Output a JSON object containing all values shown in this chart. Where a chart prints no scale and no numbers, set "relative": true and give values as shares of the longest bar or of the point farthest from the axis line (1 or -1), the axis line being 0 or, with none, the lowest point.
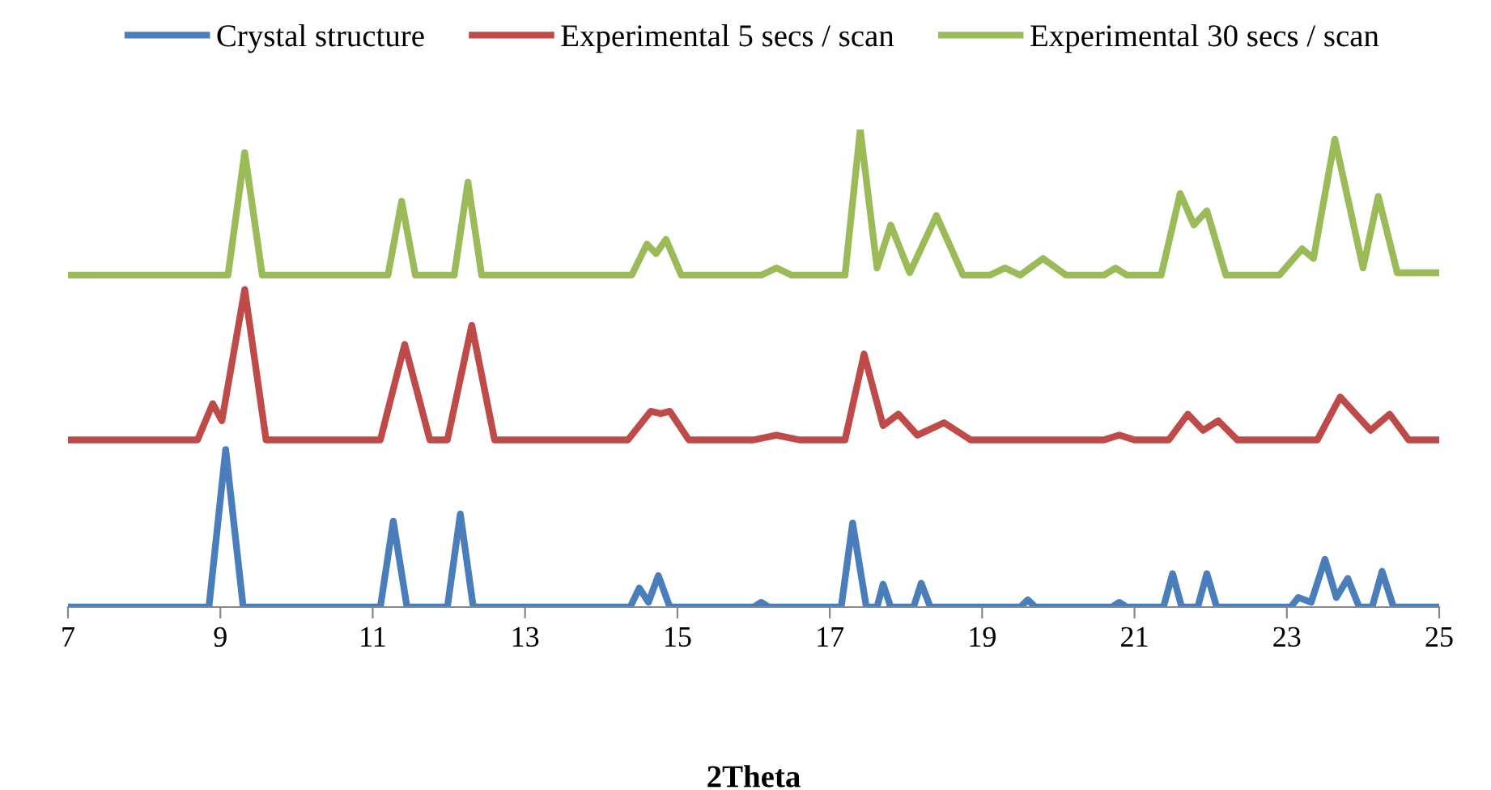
{
  "chart_data": {
    "type": "line",
    "relative": true,
    "xlabel": "2Theta",
    "xlim": [
      7,
      25
    ],
    "xticks": [
      7,
      9,
      11,
      13,
      15,
      17,
      19,
      21,
      23,
      25
    ],
    "legend": "top",
    "grid": false,
    "marker": "none",
    "line_style": "solid",
    "series": [
      {
        "name": "Crystal structure",
        "color": "#4a7ebb",
        "x": [
          7,
          8.85,
          9.07,
          9.3,
          11.1,
          11.27,
          11.45,
          11.98,
          12.15,
          12.32,
          14.38,
          14.5,
          14.62,
          14.75,
          14.9,
          16.0,
          16.1,
          16.2,
          17.15,
          17.3,
          17.48,
          17.62,
          17.7,
          17.8,
          18.1,
          18.2,
          18.32,
          19.5,
          19.6,
          19.7,
          20.7,
          20.8,
          20.9,
          21.38,
          21.5,
          21.62,
          21.83,
          21.95,
          22.08,
          23.05,
          23.15,
          23.32,
          23.5,
          23.65,
          23.8,
          23.95,
          24.12,
          24.25,
          24.4,
          25
        ],
        "values": [
          0,
          0,
          0.33,
          0,
          0,
          0.18,
          0,
          0,
          0.195,
          0,
          0,
          0.04,
          0.01,
          0.066,
          0,
          0,
          0.01,
          0,
          0,
          0.176,
          0,
          0,
          0.048,
          0,
          0,
          0.05,
          0,
          0,
          0.015,
          0,
          0,
          0.01,
          0,
          0,
          0.07,
          0,
          0,
          0.07,
          0,
          0,
          0.02,
          0.01,
          0.1,
          0.02,
          0.06,
          0,
          0,
          0.075,
          0,
          0
        ]
      },
      {
        "name": "Experimental 5 secs / scan",
        "color": "#be4b48",
        "x": [
          7,
          8.7,
          8.9,
          9.02,
          9.32,
          9.6,
          11.1,
          11.42,
          11.75,
          11.98,
          12.3,
          12.6,
          14.35,
          14.65,
          14.78,
          14.9,
          15.15,
          16.0,
          16.3,
          16.6,
          17.2,
          17.45,
          17.7,
          17.9,
          18.15,
          18.5,
          18.85,
          20.6,
          20.8,
          21.0,
          21.45,
          21.7,
          21.9,
          22.1,
          22.35,
          23.4,
          23.7,
          24.1,
          24.35,
          24.6,
          25
        ],
        "values": [
          0.35,
          0.35,
          0.426,
          0.39,
          0.665,
          0.35,
          0.35,
          0.55,
          0.35,
          0.35,
          0.59,
          0.35,
          0.35,
          0.41,
          0.405,
          0.41,
          0.35,
          0.35,
          0.36,
          0.35,
          0.35,
          0.53,
          0.38,
          0.404,
          0.36,
          0.386,
          0.35,
          0.35,
          0.36,
          0.35,
          0.35,
          0.404,
          0.37,
          0.39,
          0.35,
          0.35,
          0.44,
          0.37,
          0.404,
          0.35,
          0.35
        ]
      },
      {
        "name": "Experimental 30 secs / scan",
        "color": "#9bbb59",
        "x": [
          7,
          9.1,
          9.32,
          9.55,
          11.2,
          11.38,
          11.56,
          12.07,
          12.25,
          12.43,
          14.4,
          14.6,
          14.72,
          14.85,
          15.05,
          16.1,
          16.3,
          16.5,
          17.2,
          17.4,
          17.62,
          17.8,
          18.05,
          18.4,
          18.75,
          19.1,
          19.3,
          19.5,
          19.8,
          20.1,
          20.6,
          20.75,
          20.9,
          21.35,
          21.6,
          21.78,
          21.95,
          22.2,
          22.9,
          23.2,
          23.35,
          23.63,
          24.0,
          24.2,
          24.45,
          25
        ],
        "values": [
          0.695,
          0.695,
          0.952,
          0.695,
          0.695,
          0.85,
          0.695,
          0.695,
          0.89,
          0.695,
          0.695,
          0.76,
          0.74,
          0.77,
          0.695,
          0.695,
          0.71,
          0.695,
          0.695,
          1.0,
          0.71,
          0.8,
          0.7,
          0.82,
          0.695,
          0.695,
          0.71,
          0.695,
          0.73,
          0.695,
          0.695,
          0.71,
          0.695,
          0.695,
          0.866,
          0.8,
          0.83,
          0.695,
          0.695,
          0.75,
          0.73,
          0.98,
          0.71,
          0.86,
          0.7,
          0.7
        ]
      }
    ]
  }
}
